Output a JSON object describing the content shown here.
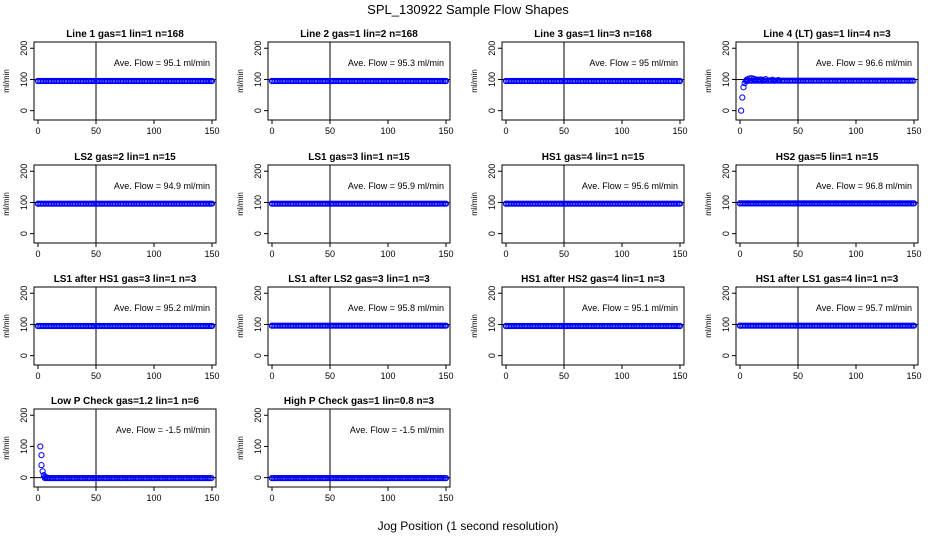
{
  "page_title": "SPL_130922  Sample Flow Shapes",
  "x_axis_title": "Jog Position (1 second resolution)",
  "y_axis_label": "ml/min",
  "avg_prefix": "Ave. Flow = ",
  "avg_unit": "ml/min",
  "colors": {
    "points": "#0000ff",
    "axes": "#000000",
    "background": "#ffffff"
  },
  "chart_data": [
    {
      "type": "scatter",
      "title": "Line 1 gas=1 lin=1 n=168",
      "avg": "95.1",
      "xlim": [
        0,
        150
      ],
      "ylim": [
        -30,
        220
      ],
      "x_ticks": [
        0,
        50,
        100,
        150
      ],
      "y_ticks": [
        0,
        100,
        200
      ],
      "vline": 50,
      "hline": 100,
      "series": [
        {
          "points": [
            [
              0,
              95
            ],
            [
              150,
              95
            ]
          ],
          "dense_segments": [
            [
              0,
              150,
              95
            ]
          ]
        }
      ]
    },
    {
      "type": "scatter",
      "title": "Line 2 gas=1 lin=2 n=168",
      "avg": "95.3",
      "xlim": [
        0,
        150
      ],
      "ylim": [
        -30,
        220
      ],
      "x_ticks": [
        0,
        50,
        100,
        150
      ],
      "y_ticks": [
        0,
        100,
        200
      ],
      "vline": 50,
      "hline": 100,
      "series": [
        {
          "points": [
            [
              0,
              95
            ],
            [
              150,
              95
            ]
          ],
          "dense_segments": [
            [
              0,
              150,
              95
            ]
          ]
        }
      ]
    },
    {
      "type": "scatter",
      "title": "Line 3 gas=1 lin=3 n=168",
      "avg": "95",
      "xlim": [
        0,
        150
      ],
      "ylim": [
        -30,
        220
      ],
      "x_ticks": [
        0,
        50,
        100,
        150
      ],
      "y_ticks": [
        0,
        100,
        200
      ],
      "vline": 50,
      "hline": 100,
      "series": [
        {
          "points": [
            [
              0,
              95
            ],
            [
              150,
              95
            ]
          ],
          "dense_segments": [
            [
              0,
              150,
              95
            ]
          ]
        }
      ]
    },
    {
      "type": "scatter",
      "title": "Line 4 (LT) gas=1 lin=4 n=3",
      "avg": "96.6",
      "xlim": [
        0,
        150
      ],
      "ylim": [
        -30,
        220
      ],
      "x_ticks": [
        0,
        50,
        100,
        150
      ],
      "y_ticks": [
        0,
        100,
        200
      ],
      "vline": 50,
      "hline": 100,
      "series": [
        {
          "points": [
            [
              1,
              0
            ],
            [
              2,
              42
            ],
            [
              3,
              75
            ],
            [
              4,
              88
            ],
            [
              5,
              95
            ],
            [
              6,
              100
            ],
            [
              8,
              103
            ],
            [
              10,
              104
            ],
            [
              12,
              102
            ],
            [
              14,
              100
            ],
            [
              16,
              99
            ],
            [
              18,
              100
            ],
            [
              20,
              98
            ],
            [
              22,
              101
            ],
            [
              25,
              97
            ],
            [
              28,
              99
            ],
            [
              30,
              96
            ],
            [
              33,
              98
            ]
          ],
          "dense_segments": [
            [
              6,
              150,
              96
            ]
          ]
        }
      ]
    },
    {
      "type": "scatter",
      "title": "LS2 gas=2 lin=1 n=15",
      "avg": "94.9",
      "xlim": [
        0,
        150
      ],
      "ylim": [
        -30,
        220
      ],
      "x_ticks": [
        0,
        50,
        100,
        150
      ],
      "y_ticks": [
        0,
        100,
        200
      ],
      "vline": 50,
      "hline": 100,
      "series": [
        {
          "points": [
            [
              0,
              96
            ],
            [
              150,
              96
            ]
          ],
          "dense_segments": [
            [
              0,
              150,
              96
            ]
          ]
        }
      ]
    },
    {
      "type": "scatter",
      "title": "LS1 gas=3 lin=1 n=15",
      "avg": "95.9",
      "xlim": [
        0,
        150
      ],
      "ylim": [
        -30,
        220
      ],
      "x_ticks": [
        0,
        50,
        100,
        150
      ],
      "y_ticks": [
        0,
        100,
        200
      ],
      "vline": 50,
      "hline": 100,
      "series": [
        {
          "points": [
            [
              0,
              96
            ],
            [
              150,
              96
            ]
          ],
          "dense_segments": [
            [
              0,
              150,
              96
            ]
          ]
        }
      ]
    },
    {
      "type": "scatter",
      "title": "HS1 gas=4 lin=1 n=15",
      "avg": "95.6",
      "xlim": [
        0,
        150
      ],
      "ylim": [
        -30,
        220
      ],
      "x_ticks": [
        0,
        50,
        100,
        150
      ],
      "y_ticks": [
        0,
        100,
        200
      ],
      "vline": 50,
      "hline": 100,
      "series": [
        {
          "points": [
            [
              0,
              96
            ],
            [
              150,
              96
            ]
          ],
          "dense_segments": [
            [
              0,
              150,
              96
            ]
          ]
        }
      ]
    },
    {
      "type": "scatter",
      "title": "HS2 gas=5 lin=1 n=15",
      "avg": "96.8",
      "xlim": [
        0,
        150
      ],
      "ylim": [
        -30,
        220
      ],
      "x_ticks": [
        0,
        50,
        100,
        150
      ],
      "y_ticks": [
        0,
        100,
        200
      ],
      "vline": 50,
      "hline": 100,
      "series": [
        {
          "points": [
            [
              0,
              97
            ],
            [
              150,
              97
            ]
          ],
          "dense_segments": [
            [
              0,
              150,
              97
            ]
          ]
        }
      ]
    },
    {
      "type": "scatter",
      "title": "LS1 after HS1 gas=3 lin=1 n=3",
      "avg": "95.2",
      "xlim": [
        0,
        150
      ],
      "ylim": [
        -30,
        220
      ],
      "x_ticks": [
        0,
        50,
        100,
        150
      ],
      "y_ticks": [
        0,
        100,
        200
      ],
      "vline": 50,
      "hline": 100,
      "series": [
        {
          "points": [
            [
              0,
              95
            ],
            [
              150,
              95
            ]
          ],
          "dense_segments": [
            [
              0,
              150,
              95
            ]
          ]
        }
      ]
    },
    {
      "type": "scatter",
      "title": "LS1 after LS2 gas=3 lin=1 n=3",
      "avg": "95.8",
      "xlim": [
        0,
        150
      ],
      "ylim": [
        -30,
        220
      ],
      "x_ticks": [
        0,
        50,
        100,
        150
      ],
      "y_ticks": [
        0,
        100,
        200
      ],
      "vline": 50,
      "hline": 100,
      "series": [
        {
          "points": [
            [
              0,
              96
            ],
            [
              150,
              96
            ]
          ],
          "dense_segments": [
            [
              0,
              150,
              96
            ]
          ]
        }
      ]
    },
    {
      "type": "scatter",
      "title": "HS1 after HS2 gas=4 lin=1 n=3",
      "avg": "95.1",
      "xlim": [
        0,
        150
      ],
      "ylim": [
        -30,
        220
      ],
      "x_ticks": [
        0,
        50,
        100,
        150
      ],
      "y_ticks": [
        0,
        100,
        200
      ],
      "vline": 50,
      "hline": 100,
      "series": [
        {
          "points": [
            [
              0,
              95
            ],
            [
              150,
              95
            ]
          ],
          "dense_segments": [
            [
              0,
              150,
              95
            ]
          ]
        }
      ]
    },
    {
      "type": "scatter",
      "title": "HS1 after LS1 gas=4 lin=1 n=3",
      "avg": "95.7",
      "xlim": [
        0,
        150
      ],
      "ylim": [
        -30,
        220
      ],
      "x_ticks": [
        0,
        50,
        100,
        150
      ],
      "y_ticks": [
        0,
        100,
        200
      ],
      "vline": 50,
      "hline": 100,
      "series": [
        {
          "points": [
            [
              0,
              96
            ],
            [
              150,
              96
            ]
          ],
          "dense_segments": [
            [
              0,
              150,
              96
            ]
          ]
        }
      ]
    },
    {
      "type": "scatter",
      "title": "Low P Check gas=1.2 lin=1 n=6",
      "avg": "-1.5",
      "xlim": [
        0,
        150
      ],
      "ylim": [
        -30,
        220
      ],
      "x_ticks": [
        0,
        50,
        100,
        150
      ],
      "y_ticks": [
        0,
        100,
        200
      ],
      "vline": 50,
      "hline": 0,
      "series": [
        {
          "points": [
            [
              2,
              100
            ],
            [
              3,
              72
            ],
            [
              3,
              40
            ],
            [
              4,
              20
            ],
            [
              5,
              8
            ],
            [
              6,
              2
            ],
            [
              8,
              0
            ]
          ],
          "dense_segments": [
            [
              6,
              150,
              -1.5
            ]
          ]
        }
      ]
    },
    {
      "type": "scatter",
      "title": "High P Check gas=1 lin=0.8 n=3",
      "avg": "-1.5",
      "xlim": [
        0,
        150
      ],
      "ylim": [
        -30,
        220
      ],
      "x_ticks": [
        0,
        50,
        100,
        150
      ],
      "y_ticks": [
        0,
        100,
        200
      ],
      "vline": 50,
      "hline": 0,
      "series": [
        {
          "points": [
            [
              0,
              -1.5
            ],
            [
              150,
              -1.5
            ]
          ],
          "dense_segments": [
            [
              0,
              150,
              -1.5
            ]
          ]
        }
      ]
    }
  ]
}
